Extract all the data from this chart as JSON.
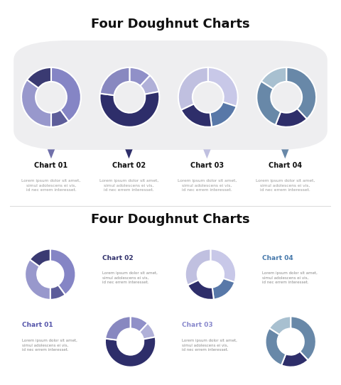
{
  "title": "Four Doughnut Charts",
  "lorem": "Lorem ipsum dolor sit amet,\nsimul adolescens ei vis,\nid nec errem interesset.",
  "top_section": {
    "bg_color": "#eeeef0",
    "charts": [
      {
        "label": "Chart 01",
        "slices": [
          0.4,
          0.1,
          0.35,
          0.15
        ],
        "colors": [
          "#8585c5",
          "#5d5d9a",
          "#9898cc",
          "#3a3a72"
        ],
        "arrow_color": "#7070aa"
      },
      {
        "label": "Chart 02",
        "slices": [
          0.12,
          0.1,
          0.55,
          0.23
        ],
        "colors": [
          "#9090c8",
          "#b0b0d8",
          "#2e2e6a",
          "#8888c0"
        ],
        "arrow_color": "#2e2e6a"
      },
      {
        "label": "Chart 03",
        "slices": [
          0.3,
          0.18,
          0.2,
          0.32
        ],
        "colors": [
          "#c8c8e8",
          "#5878a8",
          "#2e2e6a",
          "#c0c0e0"
        ],
        "arrow_color": "#c0c0e0"
      },
      {
        "label": "Chart 04",
        "slices": [
          0.38,
          0.18,
          0.28,
          0.16
        ],
        "colors": [
          "#6888a8",
          "#2e2e6a",
          "#6888a8",
          "#a8c0d0"
        ],
        "arrow_color": "#6888a8"
      }
    ]
  },
  "bottom_section": {
    "tile_color_1": "#dde0ee",
    "tile_color_2": "#e0e3f0",
    "tile_color_3": "#e8eaf4",
    "charts": [
      {
        "label": "Chart 01",
        "label_color": "#5555aa",
        "slices": [
          0.4,
          0.1,
          0.35,
          0.15
        ],
        "colors": [
          "#8585c5",
          "#5d5d9a",
          "#9898cc",
          "#3a3a72"
        ]
      },
      {
        "label": "Chart 02",
        "label_color": "#2e2e6a",
        "slices": [
          0.12,
          0.1,
          0.55,
          0.23
        ],
        "colors": [
          "#9090c8",
          "#b0b0d8",
          "#2e2e6a",
          "#8888c0"
        ]
      },
      {
        "label": "Chart 03",
        "label_color": "#8888cc",
        "slices": [
          0.3,
          0.18,
          0.2,
          0.32
        ],
        "colors": [
          "#c8c8e8",
          "#5878a8",
          "#2e2e6a",
          "#c0c0e0"
        ]
      },
      {
        "label": "Chart 04",
        "label_color": "#4477aa",
        "slices": [
          0.38,
          0.18,
          0.28,
          0.16
        ],
        "colors": [
          "#6888a8",
          "#2e2e6a",
          "#6888a8",
          "#a8c0d0"
        ]
      }
    ]
  }
}
